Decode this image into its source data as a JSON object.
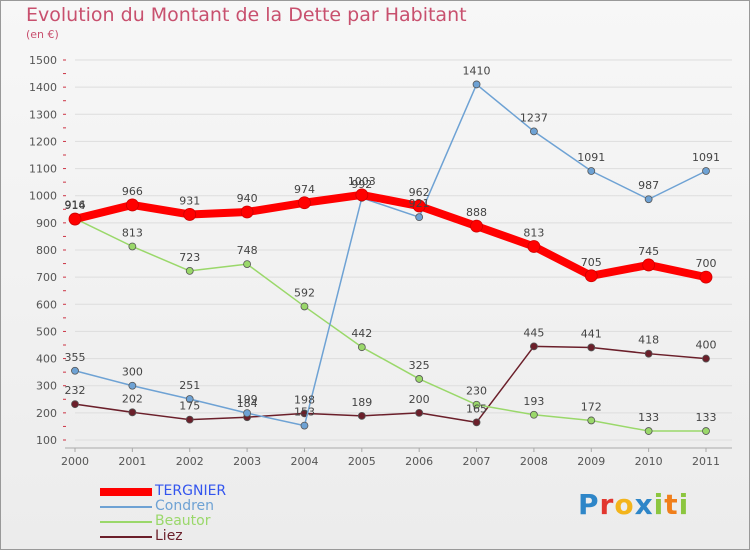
{
  "header": {
    "title": "Evolution du Montant de la Dette par Habitant",
    "subtitle": "(en €)"
  },
  "logo": {
    "text": "Proxiti",
    "letters": [
      {
        "ch": "P",
        "color": "#2e86c8"
      },
      {
        "ch": "r",
        "color": "#e2362e"
      },
      {
        "ch": "o",
        "color": "#f3b41b"
      },
      {
        "ch": "x",
        "color": "#2e86c8"
      },
      {
        "ch": "i",
        "color": "#8cc63f"
      },
      {
        "ch": "t",
        "color": "#f07f1b"
      },
      {
        "ch": "i",
        "color": "#8cc63f"
      }
    ]
  },
  "chart_data": {
    "type": "line",
    "title": "Evolution du Montant de la Dette par Habitant",
    "subtitle": "(en €)",
    "x": [
      "2000",
      "2001",
      "2002",
      "2003",
      "2004",
      "2005",
      "2006",
      "2007",
      "2008",
      "2009",
      "2010",
      "2011"
    ],
    "ylim": [
      100,
      1500
    ],
    "yticks": [
      100,
      200,
      300,
      400,
      500,
      600,
      700,
      800,
      900,
      1000,
      1100,
      1200,
      1300,
      1400,
      1500
    ],
    "grid": "horizontal",
    "legend": "bottom-left",
    "series": [
      {
        "name": "Liez",
        "color": "#6b1f2a",
        "width": 1.5,
        "dot": 3.5,
        "values": [
          232,
          202,
          175,
          184,
          198,
          189,
          200,
          165,
          445,
          441,
          418,
          400
        ]
      },
      {
        "name": "Beautor",
        "color": "#9ad86a",
        "width": 1.5,
        "dot": 3.5,
        "values": [
          916,
          813,
          723,
          748,
          592,
          442,
          325,
          230,
          193,
          172,
          133,
          133
        ]
      },
      {
        "name": "Condren",
        "color": "#6ea2d4",
        "width": 1.5,
        "dot": 3.5,
        "values": [
          355,
          300,
          251,
          199,
          153,
          992,
          921,
          1410,
          1237,
          1091,
          987,
          1091
        ]
      },
      {
        "name": "TERGNIER",
        "color": "#ff0000",
        "width": 8,
        "dot": 6,
        "values": [
          914,
          966,
          931,
          940,
          974,
          1003,
          962,
          888,
          813,
          705,
          745,
          700
        ]
      }
    ]
  },
  "legend": [
    {
      "name": "TERGNIER",
      "color": "#ff0000",
      "thickness": 8
    },
    {
      "name": "Condren",
      "color": "#6ea2d4",
      "thickness": 2
    },
    {
      "name": "Beautor",
      "color": "#9ad86a",
      "thickness": 2
    },
    {
      "name": "Liez",
      "color": "#6b1f2a",
      "thickness": 2
    }
  ]
}
